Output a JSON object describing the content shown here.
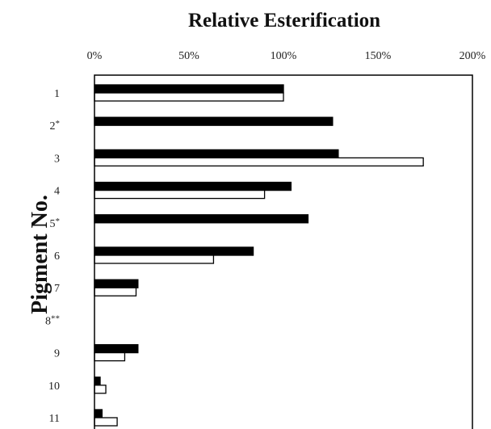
{
  "chart_data": {
    "type": "bar",
    "orientation": "horizontal",
    "title": "Relative Esterification",
    "ylabel": "Pigment No.",
    "xlabel": "",
    "x_tick_labels": [
      "0%",
      "50%",
      "100%",
      "150%",
      "200%"
    ],
    "xlim": [
      0,
      200
    ],
    "categories": [
      "1",
      "2*",
      "3",
      "4",
      "5*",
      "6",
      "7",
      "8**",
      "9",
      "10",
      "11"
    ],
    "series": [
      {
        "color": "#000000",
        "values": [
          100,
          126,
          129,
          104,
          113,
          84,
          23,
          0,
          23,
          3,
          4
        ]
      },
      {
        "color": "#ffffff",
        "values": [
          100,
          0,
          174,
          90,
          0,
          63,
          22,
          0,
          16,
          6,
          12
        ]
      }
    ],
    "grid": false,
    "legend": "none"
  }
}
